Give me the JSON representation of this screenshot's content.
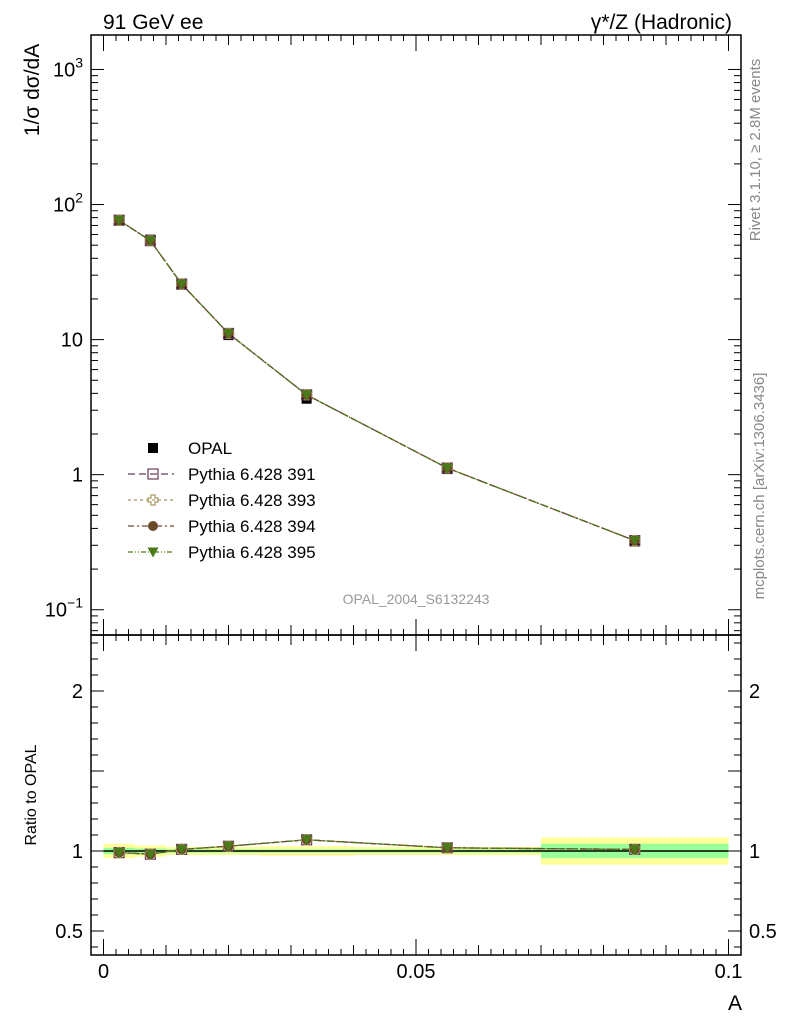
{
  "header": {
    "left_title": "91 GeV ee",
    "right_title": "γ*/Z (Hadronic)"
  },
  "side_labels": {
    "rivet": "Rivet 3.1.10, ≥ 2.8M events",
    "mcplots": "mcplots.cern.ch [arXiv:1306.3436]"
  },
  "analysis_id": "OPAL_2004_S6132243",
  "colors": {
    "opal": "#000000",
    "p391": "#6b3a5a",
    "p393": "#a89860",
    "p394": "#6b4a2a",
    "p395": "#4a7a1a",
    "band_yellow": "#ffff99",
    "band_green": "#99ff99"
  },
  "chart_data": [
    {
      "type": "scatter",
      "name": "main",
      "ylabel": "1/σ dσ/dA",
      "yscale": "log",
      "ylim": [
        0.065,
        1800
      ],
      "xlim": [
        -0.002,
        0.102
      ],
      "yticks": [
        {
          "value": 0.1,
          "base": "10",
          "exp": "−1"
        },
        {
          "value": 1,
          "label": "1"
        },
        {
          "value": 10,
          "label": "10"
        },
        {
          "value": 100,
          "base": "10",
          "exp": "2"
        },
        {
          "value": 1000,
          "base": "10",
          "exp": "3"
        }
      ],
      "x": [
        0.0025,
        0.0075,
        0.0125,
        0.02,
        0.0325,
        0.055,
        0.085
      ],
      "series": [
        {
          "name": "OPAL",
          "key": "opal",
          "marker": "square-filled",
          "values": [
            77,
            55,
            25.5,
            10.8,
            3.65,
            1.1,
            0.32
          ]
        },
        {
          "name": "Pythia 6.428 391",
          "key": "p391",
          "marker": "square-open",
          "values": [
            76.5,
            54,
            25.8,
            11.1,
            3.9,
            1.12,
            0.325
          ]
        },
        {
          "name": "Pythia 6.428 393",
          "key": "p393",
          "marker": "cross-open",
          "values": [
            76.5,
            54,
            25.8,
            11.1,
            3.9,
            1.12,
            0.325
          ]
        },
        {
          "name": "Pythia 6.428 394",
          "key": "p394",
          "marker": "circle-filled",
          "values": [
            76.5,
            54,
            25.8,
            11.1,
            3.9,
            1.12,
            0.325
          ]
        },
        {
          "name": "Pythia 6.428 395",
          "key": "p395",
          "marker": "triangle-down-filled",
          "values": [
            76.5,
            54,
            25.8,
            11.1,
            3.9,
            1.12,
            0.325
          ]
        }
      ]
    },
    {
      "type": "scatter",
      "name": "ratio",
      "xlabel": "A",
      "ylabel": "Ratio to OPAL",
      "ylim": [
        0.35,
        2.35
      ],
      "xlim": [
        -0.002,
        0.102
      ],
      "yticks": [
        {
          "value": 0.5,
          "label": "0.5"
        },
        {
          "value": 1,
          "label": "1"
        },
        {
          "value": 2,
          "label": "2"
        }
      ],
      "xticks": [
        {
          "value": 0,
          "label": "0"
        },
        {
          "value": 0.05,
          "label": "0.05"
        },
        {
          "value": 0.1,
          "label": "0.1"
        }
      ],
      "bands": [
        {
          "x0": 0.0,
          "x1": 0.005,
          "green": [
            0.98,
            1.02
          ],
          "yellow": [
            0.955,
            1.045
          ]
        },
        {
          "x0": 0.005,
          "x1": 0.01,
          "green": [
            0.985,
            1.015
          ],
          "yellow": [
            0.965,
            1.035
          ]
        },
        {
          "x0": 0.01,
          "x1": 0.015,
          "green": [
            0.99,
            1.01
          ],
          "yellow": [
            0.975,
            1.025
          ]
        },
        {
          "x0": 0.015,
          "x1": 0.025,
          "green": [
            0.99,
            1.01
          ],
          "yellow": [
            0.975,
            1.025
          ]
        },
        {
          "x0": 0.025,
          "x1": 0.04,
          "green": [
            0.99,
            1.01
          ],
          "yellow": [
            0.97,
            1.03
          ]
        },
        {
          "x0": 0.04,
          "x1": 0.07,
          "green": [
            0.99,
            1.01
          ],
          "yellow": [
            0.975,
            1.025
          ]
        },
        {
          "x0": 0.07,
          "x1": 0.1,
          "green": [
            0.955,
            1.045
          ],
          "yellow": [
            0.915,
            1.085
          ]
        }
      ],
      "x": [
        0.0025,
        0.0075,
        0.0125,
        0.02,
        0.0325,
        0.055,
        0.085
      ],
      "series": [
        {
          "name": "Pythia 6.428 391",
          "key": "p391",
          "marker": "square-open",
          "values": [
            0.99,
            0.98,
            1.01,
            1.03,
            1.07,
            1.02,
            1.01
          ]
        },
        {
          "name": "Pythia 6.428 393",
          "key": "p393",
          "marker": "cross-open",
          "values": [
            0.99,
            0.98,
            1.01,
            1.03,
            1.07,
            1.02,
            1.01
          ]
        },
        {
          "name": "Pythia 6.428 394",
          "key": "p394",
          "marker": "circle-filled",
          "values": [
            0.99,
            0.98,
            1.01,
            1.03,
            1.07,
            1.02,
            1.01
          ]
        },
        {
          "name": "Pythia 6.428 395",
          "key": "p395",
          "marker": "triangle-down-filled",
          "values": [
            0.99,
            0.98,
            1.01,
            1.03,
            1.07,
            1.02,
            1.01
          ]
        }
      ]
    }
  ]
}
